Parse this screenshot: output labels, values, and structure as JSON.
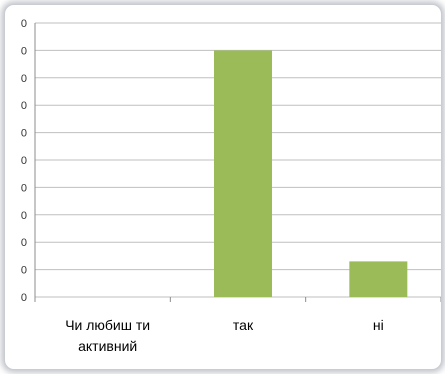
{
  "chart_data": {
    "type": "bar",
    "categories": [
      "Чи любиш ти активний",
      "так",
      "ні"
    ],
    "category_label_lines": [
      [
        "Чи любиш ти",
        "активний"
      ],
      [
        "так"
      ],
      [
        "ні"
      ]
    ],
    "values": [
      0,
      90,
      13
    ],
    "ylim": [
      0,
      100
    ],
    "yticks": [
      "0",
      "0",
      "0",
      "0",
      "0",
      "0",
      "0",
      "0",
      "0",
      "0",
      "0"
    ],
    "grid": true,
    "legend": "none",
    "bar_color": "#9bbb59",
    "grid_color": "#bfbfbf"
  }
}
